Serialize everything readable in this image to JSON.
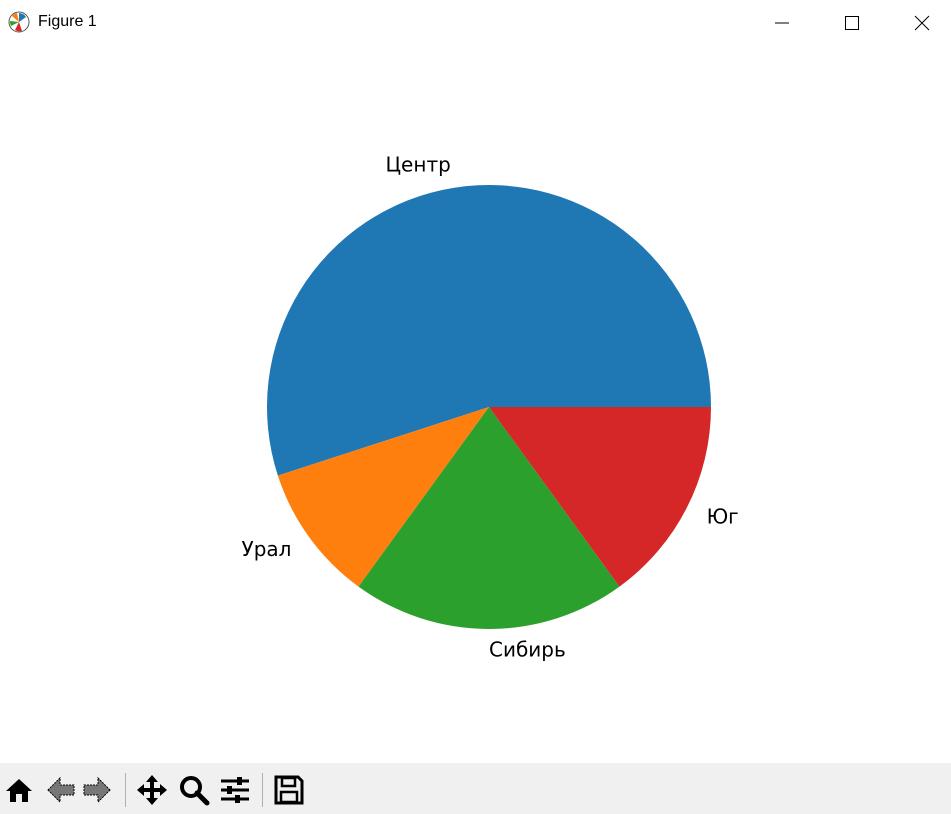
{
  "window": {
    "title": "Figure 1"
  },
  "toolbar": {
    "buttons": [
      "home-icon",
      "back-icon",
      "forward-icon",
      "pan-icon",
      "zoom-icon",
      "configure-subplots-icon",
      "save-icon"
    ]
  },
  "chart_data": {
    "type": "pie",
    "categories": [
      "Центр",
      "Урал",
      "Сибирь",
      "Юг"
    ],
    "values": [
      55,
      10,
      20,
      15
    ],
    "colors": [
      "#1f77b4",
      "#ff7f0e",
      "#2ca02c",
      "#d62728"
    ],
    "start_angle": 0,
    "direction": "counterclockwise"
  }
}
